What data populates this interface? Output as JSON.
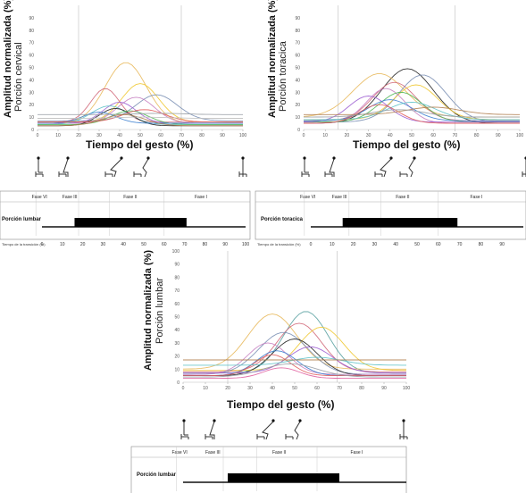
{
  "chart_data": [
    {
      "type": "line",
      "panel": "cervical",
      "ylabel": "Amplitud normalizada (%)",
      "ylabel2": "Porción cervical",
      "xlabel": "Tiempo del gesto (%)",
      "xlim": [
        0,
        100
      ],
      "ylim": [
        0,
        100
      ],
      "xticks": [
        "0",
        "10",
        "20",
        "30",
        "40",
        "50",
        "60",
        "70",
        "80",
        "90",
        "100"
      ],
      "yticks": [
        "0",
        "10",
        "20",
        "30",
        "40",
        "50",
        "60",
        "70",
        "80",
        "90"
      ],
      "vlines": [
        20,
        70
      ],
      "series": [
        {
          "color": "#e8b85a",
          "peak_x": 43,
          "peak_y": 54,
          "width": 10,
          "base": 5
        },
        {
          "color": "#f0c830",
          "peak_x": 50,
          "peak_y": 37,
          "width": 9,
          "base": 6
        },
        {
          "color": "#d2697a",
          "peak_x": 33,
          "peak_y": 33,
          "width": 7,
          "base": 6
        },
        {
          "color": "#7a8fb4",
          "peak_x": 58,
          "peak_y": 28,
          "width": 10,
          "base": 7
        },
        {
          "color": "#c77fc1",
          "peak_x": 48,
          "peak_y": 26,
          "width": 9,
          "base": 5
        },
        {
          "color": "#9d5fd1",
          "peak_x": 40,
          "peak_y": 22,
          "width": 8,
          "base": 5
        },
        {
          "color": "#5fc2c8",
          "peak_x": 35,
          "peak_y": 19,
          "width": 9,
          "base": 4
        },
        {
          "color": "#222222",
          "peak_x": 38,
          "peak_y": 17,
          "width": 8,
          "base": 3
        },
        {
          "color": "#58b95a",
          "peak_x": 45,
          "peak_y": 15,
          "width": 9,
          "base": 4
        },
        {
          "color": "#3c7fd0",
          "peak_x": 30,
          "peak_y": 14,
          "width": 8,
          "base": 5
        },
        {
          "color": "#e05c5c",
          "peak_x": 52,
          "peak_y": 16,
          "width": 10,
          "base": 6
        },
        {
          "color": "#9aa0a6",
          "peak_x": 60,
          "peak_y": 13,
          "width": 12,
          "base": 12
        },
        {
          "color": "#b08050",
          "peak_x": 42,
          "peak_y": 12,
          "width": 10,
          "base": 3
        },
        {
          "color": "#c0c0c0",
          "peak_x": 50,
          "peak_y": 10,
          "width": 12,
          "base": 9
        }
      ]
    },
    {
      "type": "line",
      "panel": "toracica",
      "ylabel": "Amplitud normalizada (%)",
      "ylabel2": "Porción toracica",
      "xlabel": "Tiempo del gesto (%)",
      "xlim": [
        0,
        100
      ],
      "ylim": [
        0,
        100
      ],
      "xticks": [
        "0",
        "10",
        "20",
        "30",
        "40",
        "50",
        "60",
        "70",
        "80",
        "90",
        "100"
      ],
      "yticks": [
        "0",
        "10",
        "20",
        "30",
        "40",
        "50",
        "60",
        "70",
        "80",
        "90"
      ],
      "vlines": [
        16,
        70
      ],
      "series": [
        {
          "color": "#222222",
          "peak_x": 48,
          "peak_y": 49,
          "width": 12,
          "base": 5
        },
        {
          "color": "#e8b85a",
          "peak_x": 35,
          "peak_y": 45,
          "width": 12,
          "base": 10
        },
        {
          "color": "#7a8fb4",
          "peak_x": 55,
          "peak_y": 44,
          "width": 11,
          "base": 6
        },
        {
          "color": "#d2697a",
          "peak_x": 42,
          "peak_y": 38,
          "width": 10,
          "base": 7
        },
        {
          "color": "#f0c830",
          "peak_x": 52,
          "peak_y": 36,
          "width": 10,
          "base": 8
        },
        {
          "color": "#c77fc1",
          "peak_x": 38,
          "peak_y": 33,
          "width": 9,
          "base": 5
        },
        {
          "color": "#58b95a",
          "peak_x": 45,
          "peak_y": 30,
          "width": 10,
          "base": 6
        },
        {
          "color": "#9d5fd1",
          "peak_x": 30,
          "peak_y": 27,
          "width": 9,
          "base": 6
        },
        {
          "color": "#3c7fd0",
          "peak_x": 40,
          "peak_y": 24,
          "width": 10,
          "base": 7
        },
        {
          "color": "#5fc2c8",
          "peak_x": 50,
          "peak_y": 22,
          "width": 11,
          "base": 8
        },
        {
          "color": "#e05c5c",
          "peak_x": 35,
          "peak_y": 20,
          "width": 9,
          "base": 5
        },
        {
          "color": "#b08050",
          "peak_x": 60,
          "peak_y": 18,
          "width": 12,
          "base": 12
        },
        {
          "color": "#9aa0a6",
          "peak_x": 44,
          "peak_y": 16,
          "width": 12,
          "base": 10
        }
      ]
    },
    {
      "type": "line",
      "panel": "lumbar",
      "ylabel": "Amplitud normalizada (%)",
      "ylabel2": "Porción lumbar",
      "xlabel": "Tiempo del gesto (%)",
      "xlim": [
        0,
        100
      ],
      "ylim": [
        0,
        100
      ],
      "xticks": [
        "0",
        "10",
        "20",
        "30",
        "40",
        "50",
        "60",
        "70",
        "80",
        "90",
        "100"
      ],
      "yticks": [
        "0",
        "10",
        "20",
        "30",
        "40",
        "50",
        "60",
        "70",
        "80",
        "90",
        "100"
      ],
      "vlines": [
        20,
        69
      ],
      "series": [
        {
          "color": "#58a0a0",
          "peak_x": 55,
          "peak_y": 54,
          "width": 10,
          "base": 7
        },
        {
          "color": "#e8b85a",
          "peak_x": 40,
          "peak_y": 52,
          "width": 11,
          "base": 10
        },
        {
          "color": "#d2697a",
          "peak_x": 52,
          "peak_y": 45,
          "width": 10,
          "base": 8
        },
        {
          "color": "#f0c830",
          "peak_x": 62,
          "peak_y": 42,
          "width": 10,
          "base": 9
        },
        {
          "color": "#7a8fb4",
          "peak_x": 45,
          "peak_y": 38,
          "width": 11,
          "base": 6
        },
        {
          "color": "#222222",
          "peak_x": 50,
          "peak_y": 33,
          "width": 10,
          "base": 5
        },
        {
          "color": "#c77fc1",
          "peak_x": 38,
          "peak_y": 30,
          "width": 9,
          "base": 6
        },
        {
          "color": "#9d5fd1",
          "peak_x": 57,
          "peak_y": 27,
          "width": 10,
          "base": 7
        },
        {
          "color": "#3c7fd0",
          "peak_x": 42,
          "peak_y": 24,
          "width": 9,
          "base": 5
        },
        {
          "color": "#e05c5c",
          "peak_x": 40,
          "peak_y": 21,
          "width": 8,
          "base": 5
        },
        {
          "color": "#5fc2c8",
          "peak_x": 60,
          "peak_y": 19,
          "width": 11,
          "base": 13
        },
        {
          "color": "#b08050",
          "peak_x": 35,
          "peak_y": 17,
          "width": 10,
          "base": 17
        },
        {
          "color": "#9aa0a6",
          "peak_x": 48,
          "peak_y": 14,
          "width": 12,
          "base": 4
        },
        {
          "color": "#e060a0",
          "peak_x": 44,
          "peak_y": 11,
          "width": 8,
          "base": 3
        }
      ]
    }
  ],
  "timelines": [
    {
      "label": "Porción lumbar",
      "phases": [
        "Fase VI",
        "Fase III",
        "Fase II",
        "Fase I"
      ],
      "xlabel": "Tiempo de la transición (%)",
      "ticks": [
        "0",
        "10",
        "20",
        "30",
        "40",
        "50",
        "60",
        "70",
        "80",
        "90",
        "100"
      ],
      "bar_start": 16,
      "bar_end": 71
    },
    {
      "label": "Porción toracica",
      "phases": [
        "Fase VI",
        "Fase III",
        "Fase II",
        "Fase I"
      ],
      "xlabel": "Tiempo de la transición (%)",
      "ticks": [
        "0",
        "10",
        "20",
        "30",
        "40",
        "50",
        "60",
        "70",
        "80",
        "90"
      ],
      "bar_start": 15,
      "bar_end": 69
    },
    {
      "label": "Porción lumbar",
      "phases": [
        "Fase VI",
        "Fase III",
        "Fase II",
        "Fase I"
      ],
      "bar_start": 20,
      "bar_end": 70
    }
  ]
}
